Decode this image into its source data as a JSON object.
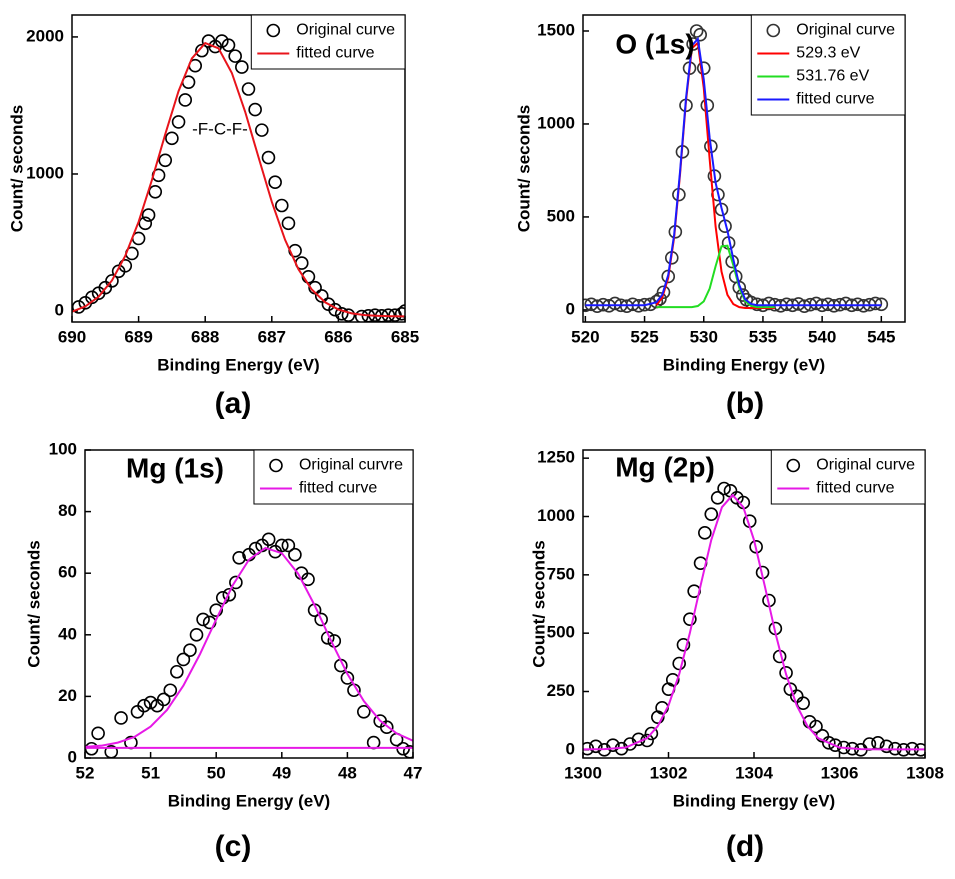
{
  "chart_data": [
    {
      "type": "line",
      "xlabel": "Binding Energy (eV)",
      "ylabel": "Count/ seconds",
      "panel_label": "(a)",
      "annotation": "-F-C-F-",
      "legend": "upper right",
      "xlim": [
        690,
        685
      ],
      "ylim": [
        -80,
        2160
      ],
      "xticks": [
        690,
        689,
        688,
        687,
        686,
        685
      ],
      "yticks": [
        0,
        1000,
        2000
      ],
      "series": [
        {
          "name": "Original curve",
          "color": "#000000",
          "mode": "markers",
          "x": [
            689.9,
            689.8,
            689.7,
            689.6,
            689.5,
            689.4,
            689.3,
            689.2,
            689.1,
            689.0,
            688.9,
            688.85,
            688.75,
            688.7,
            688.6,
            688.5,
            688.4,
            688.3,
            688.25,
            688.15,
            688.05,
            687.95,
            687.85,
            687.75,
            687.65,
            687.55,
            687.45,
            687.35,
            687.25,
            687.15,
            687.05,
            686.95,
            686.85,
            686.75,
            686.65,
            686.55,
            686.45,
            686.35,
            686.25,
            686.15,
            686.05,
            685.95,
            685.85,
            685.65,
            685.55,
            685.45,
            685.35,
            685.25,
            685.15,
            685.05,
            685.0
          ],
          "values": [
            30,
            60,
            100,
            130,
            170,
            220,
            290,
            330,
            420,
            530,
            640,
            700,
            870,
            990,
            1100,
            1260,
            1380,
            1540,
            1670,
            1790,
            1900,
            1970,
            1930,
            1970,
            1940,
            1860,
            1780,
            1620,
            1470,
            1320,
            1120,
            940,
            770,
            640,
            440,
            350,
            250,
            170,
            110,
            50,
            10,
            -20,
            -30,
            -40,
            -35,
            -30,
            -35,
            -30,
            -30,
            -20,
            0
          ]
        },
        {
          "name": "fitted curve",
          "color": "#e8141b",
          "mode": "line",
          "x": [
            690,
            689.8,
            689.6,
            689.4,
            689.2,
            689.0,
            688.8,
            688.6,
            688.4,
            688.2,
            688.0,
            687.8,
            687.6,
            687.4,
            687.2,
            687.0,
            686.8,
            686.6,
            686.4,
            686.2,
            686.0,
            685.8,
            685.6,
            685.4,
            685.2,
            685.0
          ],
          "values": [
            -5,
            34,
            105,
            223,
            403,
            651,
            956,
            1290,
            1605,
            1843,
            1955,
            1917,
            1737,
            1454,
            1123,
            797,
            519,
            305,
            157,
            64,
            11,
            -17,
            -30,
            -35,
            -38,
            -39
          ]
        }
      ]
    },
    {
      "type": "line",
      "xlabel": "Binding Energy (eV)",
      "ylabel": "Count/ seconds",
      "panel_label": "(b)",
      "annotation": "O (1s)",
      "legend": "upper right",
      "xlim": [
        519.8,
        547
      ],
      "ylim": [
        -65,
        1586
      ],
      "xticks": [
        520,
        525,
        530,
        535,
        540,
        545
      ],
      "yticks": [
        0,
        500,
        1000,
        1500
      ],
      "series": [
        {
          "name": "Original curve",
          "color": "#333333",
          "mode": "markers",
          "x": [
            520,
            520.5,
            521,
            521.5,
            522,
            522.5,
            523,
            523.5,
            524,
            524.5,
            525,
            525.5,
            526,
            526.3,
            526.6,
            527,
            527.3,
            527.6,
            527.9,
            528.2,
            528.5,
            528.8,
            529.1,
            529.4,
            529.7,
            530,
            530.3,
            530.6,
            530.9,
            531.2,
            531.5,
            531.8,
            532.1,
            532.4,
            532.7,
            533,
            533.3,
            533.6,
            534,
            534.5,
            535,
            535.5,
            536,
            536.5,
            537,
            537.5,
            538,
            538.5,
            539,
            539.5,
            540,
            540.5,
            541,
            541.5,
            542,
            542.5,
            543,
            543.5,
            544,
            544.5,
            545
          ],
          "values": [
            25,
            30,
            20,
            28,
            22,
            35,
            25,
            20,
            30,
            22,
            28,
            30,
            45,
            60,
            95,
            180,
            280,
            420,
            620,
            850,
            1100,
            1300,
            1430,
            1500,
            1480,
            1300,
            1100,
            880,
            720,
            620,
            540,
            450,
            360,
            260,
            180,
            120,
            80,
            55,
            40,
            30,
            25,
            35,
            28,
            22,
            30,
            25,
            32,
            20,
            28,
            35,
            25,
            30,
            22,
            28,
            35,
            25,
            30,
            22,
            28,
            35,
            30
          ]
        },
        {
          "name": "529.3 eV",
          "color": "#ff0000",
          "mode": "line",
          "x": [
            526,
            526.5,
            527,
            527.5,
            528,
            528.5,
            529,
            529.5,
            530,
            530.5,
            531,
            531.5,
            532,
            532.5,
            533,
            533.5,
            534,
            535,
            536
          ],
          "values": [
            26,
            67,
            173,
            390,
            731,
            1123,
            1407,
            1436,
            1194,
            810,
            449,
            206,
            81,
            31,
            15,
            10,
            10,
            10,
            10
          ]
        },
        {
          "name": "531.76 eV",
          "color": "#22dd22",
          "mode": "line",
          "x": [
            526,
            527,
            528,
            529,
            529.5,
            530,
            530.5,
            531,
            531.5,
            532,
            532.5,
            533,
            533.5,
            534,
            534.5,
            535,
            536
          ],
          "values": [
            15,
            15,
            15,
            15,
            21,
            46,
            115,
            235,
            342,
            345,
            240,
            119,
            47,
            22,
            15,
            15,
            15
          ]
        },
        {
          "name": "fitted curve",
          "color": "#1a1aff",
          "mode": "line",
          "x": [
            520,
            522,
            524,
            525,
            526,
            526.5,
            527,
            527.5,
            528,
            528.5,
            529,
            529.5,
            530,
            530.5,
            531,
            531.5,
            532,
            532.5,
            533,
            533.5,
            534,
            534.5,
            536,
            538,
            540,
            545
          ],
          "values": [
            25,
            25,
            25,
            25,
            41,
            82,
            188,
            405,
            746,
            1138,
            1422,
            1457,
            1240,
            925,
            684,
            548,
            426,
            271,
            134,
            57,
            32,
            25,
            25,
            25,
            25,
            25
          ]
        }
      ]
    },
    {
      "type": "line",
      "xlabel": "Binding Energy (eV)",
      "ylabel": "Count/ seconds",
      "panel_label": "(c)",
      "annotation": "Mg (1s)",
      "legend": "upper right",
      "xlim": [
        52,
        47
      ],
      "ylim": [
        0,
        100
      ],
      "xticks": [
        52,
        51,
        50,
        49,
        48,
        47
      ],
      "yticks": [
        0,
        20,
        40,
        60,
        80,
        100
      ],
      "series": [
        {
          "name": "Original curvre",
          "color": "#000000",
          "mode": "markers",
          "x": [
            51.9,
            51.8,
            51.6,
            51.45,
            51.3,
            51.2,
            51.1,
            51.0,
            50.9,
            50.8,
            50.7,
            50.6,
            50.5,
            50.4,
            50.3,
            50.2,
            50.1,
            50.0,
            49.9,
            49.8,
            49.7,
            49.65,
            49.5,
            49.4,
            49.3,
            49.2,
            49.1,
            49.0,
            48.9,
            48.8,
            48.7,
            48.6,
            48.5,
            48.4,
            48.3,
            48.2,
            48.1,
            48.0,
            47.9,
            47.75,
            47.6,
            47.5,
            47.4,
            47.25,
            47.15,
            47.05
          ],
          "values": [
            3,
            8,
            2,
            13,
            5,
            15,
            17,
            18,
            17,
            19,
            22,
            28,
            32,
            35,
            40,
            45,
            44,
            48,
            52,
            53,
            57,
            65,
            66,
            68,
            69,
            71,
            67,
            69,
            69,
            66,
            60,
            58,
            48,
            45,
            39,
            38,
            30,
            26,
            22,
            15,
            5,
            12,
            10,
            6,
            3,
            2
          ]
        },
        {
          "name": "fitted curve",
          "color": "#e619e6",
          "mode": "line",
          "x": [
            52,
            51.75,
            51.5,
            51.25,
            51,
            50.75,
            50.5,
            50.25,
            50,
            49.75,
            49.5,
            49.25,
            49,
            48.75,
            48.5,
            48.25,
            48,
            47.75,
            47.5,
            47.25,
            47
          ],
          "values": [
            3.6,
            4.0,
            5.0,
            6.8,
            10.2,
            15.6,
            23.5,
            33.6,
            45.0,
            56.0,
            64.4,
            68.2,
            66.5,
            59.8,
            49.6,
            38.1,
            27.3,
            18.5,
            12.1,
            8.0,
            5.6
          ]
        },
        {
          "color": "#e619e6",
          "mode": "line",
          "x": [
            52,
            47
          ],
          "values": [
            3.3,
            3.3
          ]
        }
      ]
    },
    {
      "type": "line",
      "xlabel": "Binding Energy (eV)",
      "ylabel": "Count/ seconds",
      "panel_label": "(d)",
      "annotation": "Mg (2p)",
      "legend": "upper right",
      "xlim": [
        1300,
        1308
      ],
      "ylim": [
        -35,
        1285
      ],
      "xticks": [
        1300,
        1302,
        1304,
        1306,
        1308
      ],
      "yticks": [
        0,
        250,
        500,
        750,
        1000,
        1250
      ],
      "series": [
        {
          "name": "Original curve",
          "color": "#000000",
          "mode": "markers",
          "x": [
            1300.1,
            1300.3,
            1300.5,
            1300.7,
            1300.9,
            1301.1,
            1301.3,
            1301.5,
            1301.6,
            1301.75,
            1301.85,
            1302,
            1302.1,
            1302.25,
            1302.35,
            1302.5,
            1302.6,
            1302.75,
            1302.85,
            1303,
            1303.15,
            1303.3,
            1303.45,
            1303.6,
            1303.75,
            1303.9,
            1304.05,
            1304.2,
            1304.35,
            1304.5,
            1304.6,
            1304.75,
            1304.85,
            1305,
            1305.15,
            1305.3,
            1305.45,
            1305.6,
            1305.75,
            1305.9,
            1306.1,
            1306.3,
            1306.5,
            1306.7,
            1306.9,
            1307.1,
            1307.3,
            1307.5,
            1307.7,
            1307.9
          ],
          "values": [
            5,
            15,
            0,
            20,
            5,
            25,
            45,
            40,
            70,
            140,
            180,
            260,
            300,
            370,
            450,
            560,
            680,
            800,
            930,
            1010,
            1080,
            1120,
            1110,
            1080,
            1060,
            980,
            870,
            760,
            640,
            520,
            400,
            330,
            260,
            230,
            200,
            120,
            100,
            60,
            30,
            20,
            10,
            5,
            0,
            25,
            30,
            15,
            5,
            0,
            5,
            0
          ]
        },
        {
          "name": "fitted curve",
          "color": "#e619e6",
          "mode": "line",
          "x": [
            1300,
            1300.5,
            1301,
            1301.5,
            1301.75,
            1302,
            1302.25,
            1302.5,
            1302.75,
            1303,
            1303.25,
            1303.5,
            1303.75,
            1304,
            1304.25,
            1304.5,
            1304.75,
            1305,
            1305.25,
            1305.5,
            1306,
            1306.5,
            1307,
            1308
          ],
          "values": [
            2,
            3,
            10,
            50,
            102,
            190,
            324,
            501,
            704,
            899,
            1040,
            1092,
            1040,
            899,
            704,
            501,
            324,
            190,
            102,
            50,
            10,
            3,
            2,
            2
          ]
        }
      ]
    }
  ]
}
